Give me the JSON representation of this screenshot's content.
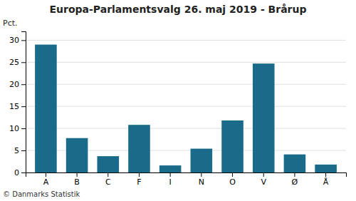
{
  "chart_data": {
    "type": "bar",
    "title": "Europa-Parlamentsvalg 26. maj 2019 - Brårup",
    "categories": [
      "A",
      "B",
      "C",
      "F",
      "I",
      "N",
      "O",
      "V",
      "Ø",
      "Å"
    ],
    "values": [
      29.0,
      7.8,
      3.7,
      10.8,
      1.6,
      5.4,
      11.8,
      24.7,
      4.1,
      1.8
    ],
    "color": "#1a6b8a",
    "ylabel": "Pct.",
    "ylim": [
      0,
      32
    ],
    "yticks": [
      0,
      5,
      10,
      15,
      20,
      25,
      30
    ],
    "grid": true,
    "annotations": [
      "© Danmarks Statistik"
    ]
  }
}
